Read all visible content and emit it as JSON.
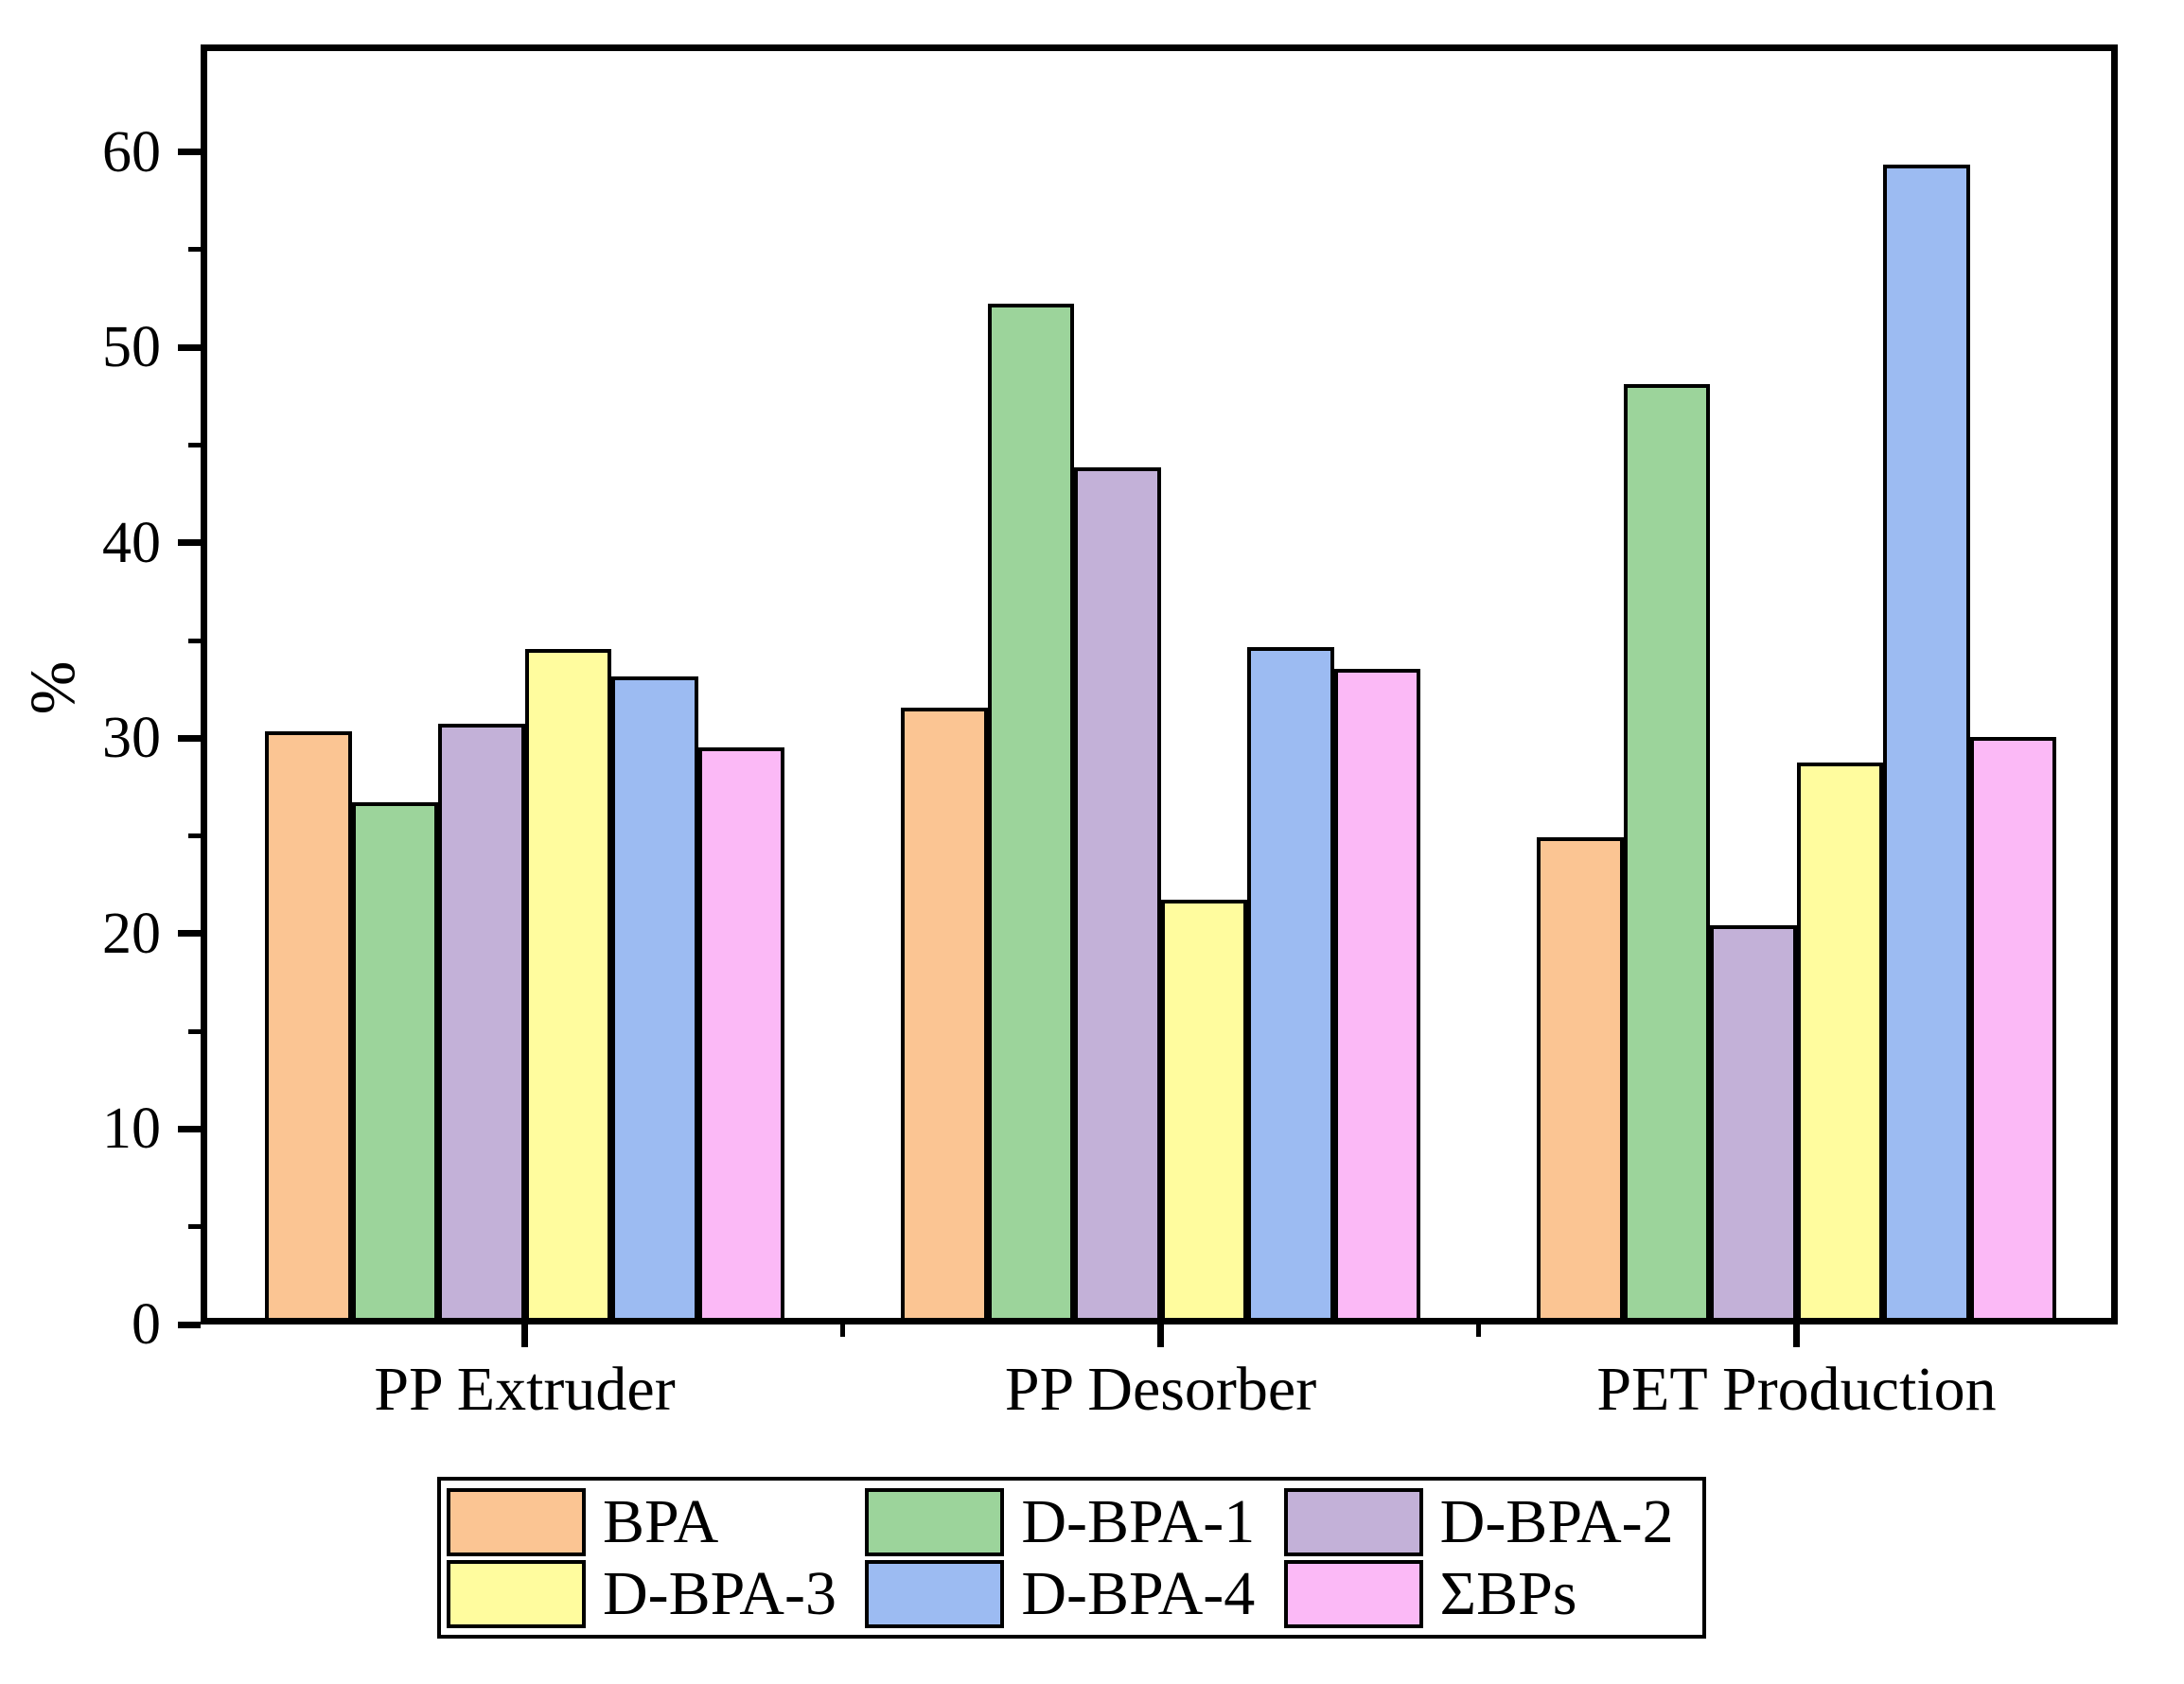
{
  "chart_data": {
    "type": "bar",
    "title": "",
    "ylabel": "%",
    "xlabel": "",
    "ylim": [
      0,
      65.5
    ],
    "yticks_major": [
      0,
      10,
      20,
      30,
      40,
      50,
      60
    ],
    "yticks_minor": [
      5,
      15,
      25,
      35,
      45,
      55
    ],
    "grid": false,
    "legend_position": "bottom",
    "categories": [
      "PP Extruder",
      "PP Desorber",
      "PET Production"
    ],
    "series": [
      {
        "name": "BPA",
        "color": "#FBC593",
        "values": [
          30.2,
          31.4,
          24.8
        ]
      },
      {
        "name": "D-BPA-1",
        "color": "#9CD49B",
        "values": [
          26.6,
          52.1,
          48.0
        ]
      },
      {
        "name": "D-BPA-2",
        "color": "#C3B1D8",
        "values": [
          30.6,
          43.7,
          20.3
        ]
      },
      {
        "name": "D-BPA-3",
        "color": "#FFFC9E",
        "values": [
          34.4,
          21.6,
          28.6
        ]
      },
      {
        "name": "D-BPA-4",
        "color": "#9CBBF2",
        "values": [
          33.0,
          34.5,
          59.2
        ]
      },
      {
        "name": "ΣBPs",
        "color": "#FBB9F6",
        "values": [
          29.4,
          33.4,
          29.9
        ]
      }
    ],
    "legend_order": [
      "BPA",
      "D-BPA-3",
      "D-BPA-1",
      "D-BPA-4",
      "D-BPA-2",
      "ΣBPs"
    ],
    "axis_color": "#000000"
  }
}
